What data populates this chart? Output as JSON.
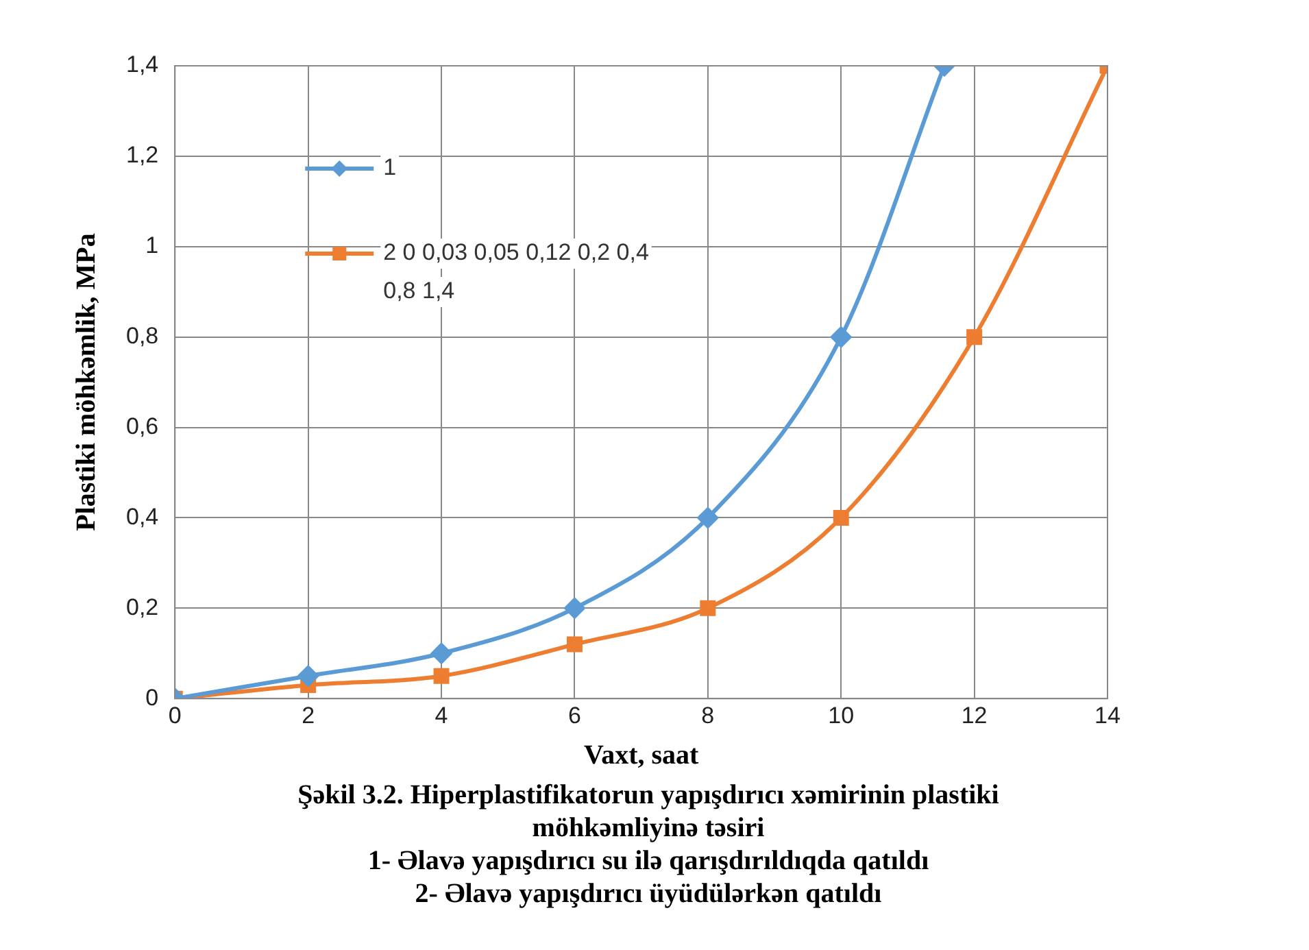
{
  "chart_data": {
    "type": "line",
    "xlabel": "Vaxt, saat",
    "ylabel": "Plastiki möhkəmlik, MPa",
    "annotations": [
      "Şəkil 3.2. Hiperplastifikatorun yapışdırıcı xəmirinin plastiki möhkəmliyinə təsiri",
      "1- Əlavə yapışdırıcı su ilə qarışdırıldıqda qatıldı",
      "2- Əlavə yapışdırıcı üyüdülərkən qatıldı"
    ],
    "xlim": [
      0,
      14
    ],
    "xticks": [
      0,
      2,
      4,
      6,
      8,
      10,
      12,
      14
    ],
    "ylim": [
      0,
      1.4
    ],
    "yticks": [
      0,
      {
        "value": 0.2,
        "label": "0,2"
      },
      {
        "value": 0.4,
        "label": "0,4"
      },
      {
        "value": 0.6,
        "label": "0,6"
      },
      {
        "value": 0.8,
        "label": "0,8"
      },
      1,
      {
        "value": 1.2,
        "label": "1,2"
      },
      {
        "value": 1.4,
        "label": "1,4"
      }
    ],
    "grid": true,
    "legend": "top left",
    "line_style": "solid",
    "series": [
      {
        "name": "1",
        "color": "#5b9bd5",
        "marker": "diamond",
        "x": [
          0,
          2,
          4,
          6,
          8,
          10,
          11.55
        ],
        "values": [
          0,
          0.05,
          0.1,
          0.2,
          0.4,
          0.8,
          1.4
        ]
      },
      {
        "name": "2 0 0,03 0,05 0,12 0,2 0,4 0,8 1,4",
        "color": "#ed7d31",
        "marker": "square",
        "x": [
          0,
          2,
          4,
          6,
          8,
          10,
          12,
          14
        ],
        "values": [
          0,
          0.03,
          0.05,
          0.12,
          0.2,
          0.4,
          0.8,
          1.4
        ]
      }
    ]
  }
}
